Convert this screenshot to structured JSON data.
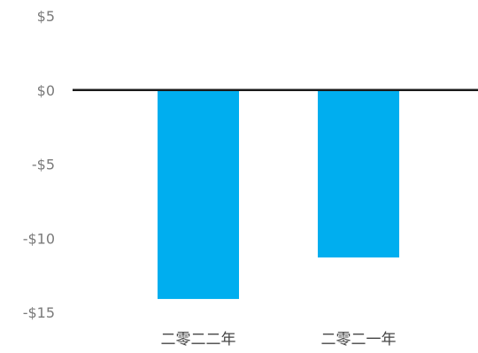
{
  "chart_data": {
    "type": "bar",
    "title": "",
    "xlabel": "",
    "ylabel": "",
    "categories": [
      "二零二二年",
      "二零二一年"
    ],
    "values": [
      -14.1,
      -11.3
    ],
    "ylim": [
      -15,
      5
    ],
    "yticks": [
      5,
      0,
      -5,
      -10,
      -15
    ],
    "ytick_labels": [
      "$5",
      "$0",
      "-$5",
      "-$10",
      "-$15"
    ],
    "grid": false,
    "legend": "none",
    "colors": {
      "bar": "#00AEEF",
      "zero_line": "#1a1a1a",
      "tick_text": "#7a7a7a",
      "category_text": "#444444"
    }
  }
}
